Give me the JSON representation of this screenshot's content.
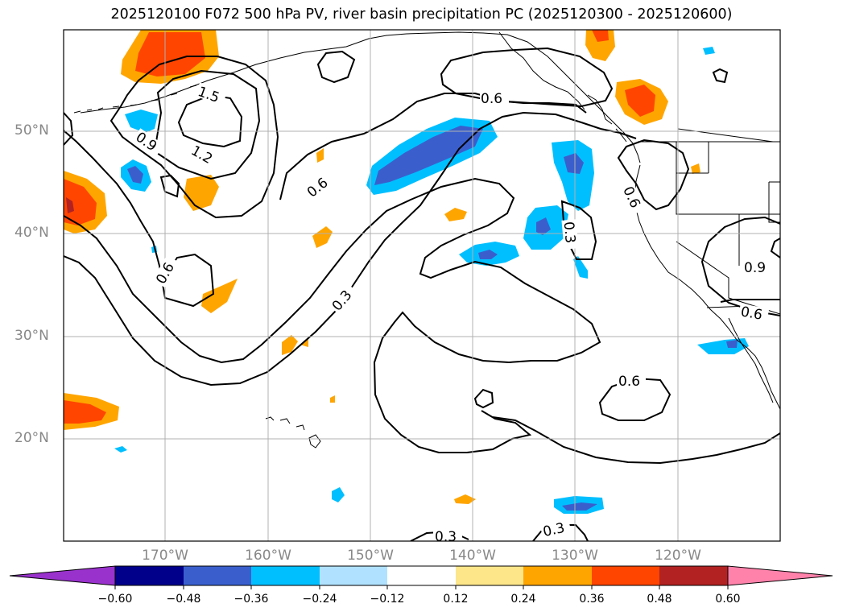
{
  "title": "2025120100 F072 500 hPa PV, river basin precipitation PC (2025120300 - 2025120600)",
  "map": {
    "lat_ticks": [
      "50°N",
      "40°N",
      "30°N",
      "20°N"
    ],
    "lon_ticks": [
      "170°W",
      "160°W",
      "150°W",
      "140°W",
      "130°W",
      "120°W"
    ],
    "contour_labels": [
      "1.5",
      "1.2",
      "0.9",
      "0.6",
      "0.6",
      "0.6",
      "0.3",
      "0.6",
      "0.3",
      "0.9",
      "0.6",
      "0.6",
      "0.3",
      "0.3"
    ]
  },
  "colorbar": {
    "tick_labels": [
      "−0.60",
      "−0.48",
      "−0.36",
      "−0.24",
      "−0.12",
      "0.12",
      "0.24",
      "0.36",
      "0.48",
      "0.60"
    ],
    "colors": [
      "#9932cc",
      "#00008b",
      "#3a5fcd",
      "#00bfff",
      "#b0e2ff",
      "#ffffff",
      "#fde68a",
      "#ffa500",
      "#ff4500",
      "#b22222",
      "#ff82ab"
    ]
  },
  "colors": {
    "pv_contour": "#000000",
    "coastline": "#000000",
    "grid": "#b0b0b0",
    "tick_label": "#888888"
  }
}
